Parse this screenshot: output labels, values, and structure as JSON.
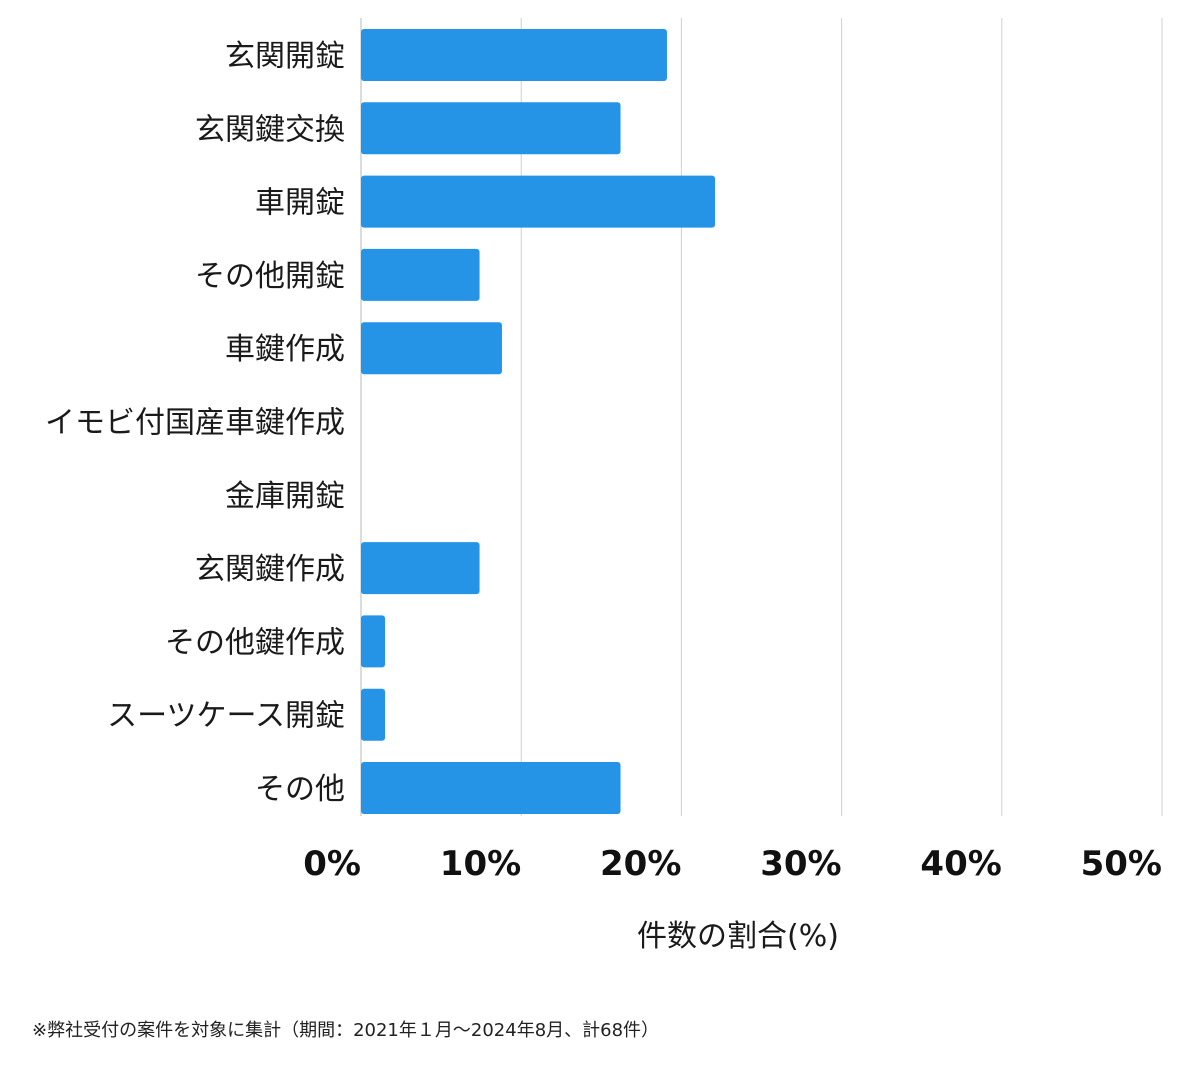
{
  "chart_data": {
    "type": "bar",
    "orientation": "horizontal",
    "categories": [
      "玄関開錠",
      "玄関鍵交換",
      "車開錠",
      "その他開錠",
      "車鍵作成",
      "イモビ付国産車鍵作成",
      "金庫開錠",
      "玄関鍵作成",
      "その他鍵作成",
      "スーツケース開錠",
      "その他"
    ],
    "values": [
      19.1,
      16.2,
      22.1,
      7.4,
      8.8,
      0,
      0,
      7.4,
      1.5,
      1.5,
      16.2
    ],
    "xlim": [
      0,
      50
    ],
    "xticks": [
      0,
      10,
      20,
      30,
      40,
      50
    ],
    "xtick_labels": [
      "0%",
      "10%",
      "20%",
      "30%",
      "40%",
      "50%"
    ],
    "xlabel": "件数の割合(%)",
    "ylabel": "",
    "grid": true,
    "bar_color": "#2594e6",
    "grid_color": "#d0d0d0"
  },
  "footnote": "※弊社受付の案件を対象に集計（期間：2021年１月〜2024年8月、計68件）"
}
